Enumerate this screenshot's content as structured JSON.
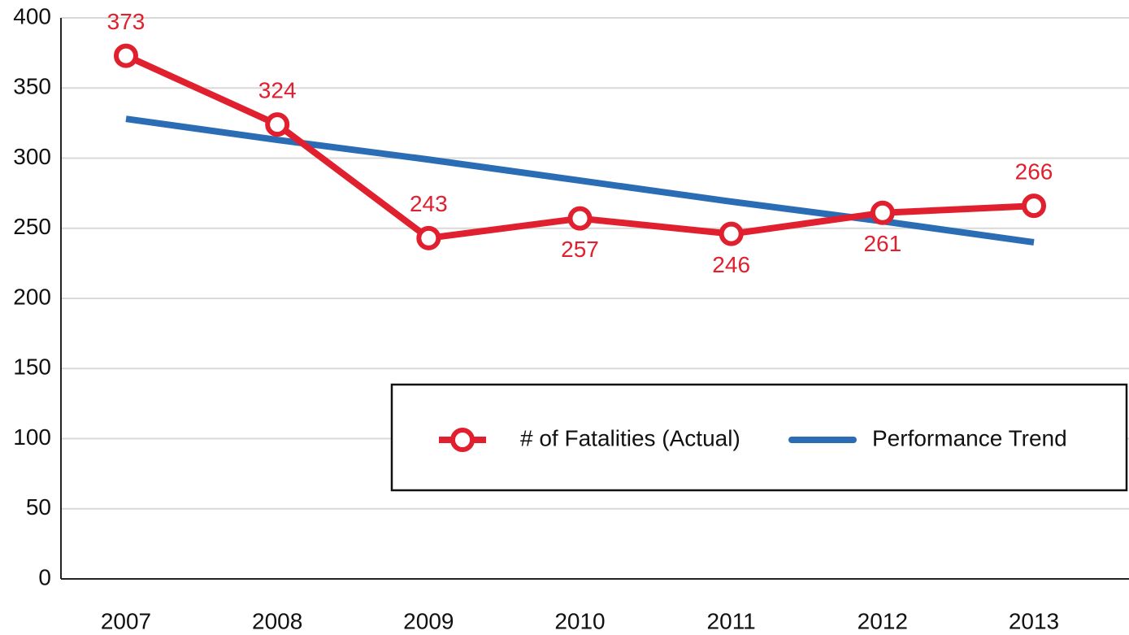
{
  "chart_data": {
    "type": "line",
    "categories": [
      "2007",
      "2008",
      "2009",
      "2010",
      "2011",
      "2012",
      "2013"
    ],
    "series": [
      {
        "name": "# of Fatalities (Actual)",
        "color": "#e0202e",
        "values": [
          373,
          324,
          243,
          257,
          246,
          261,
          266
        ]
      },
      {
        "name": "Performance Trend",
        "color": "#2b6db5",
        "values": [
          328,
          313,
          299,
          284,
          269,
          255,
          240
        ]
      }
    ],
    "ylim": [
      0,
      400
    ],
    "yticks": [
      0,
      50,
      100,
      150,
      200,
      250,
      300,
      350,
      400
    ],
    "grid": true
  }
}
